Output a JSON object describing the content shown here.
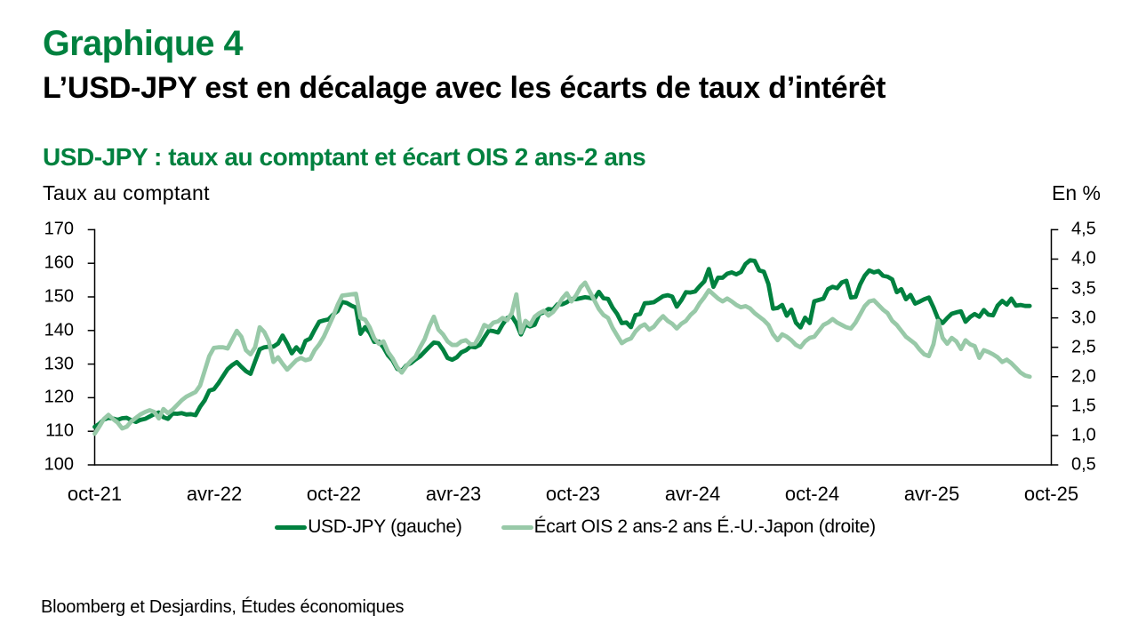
{
  "page": {
    "background": "#FFFFFF"
  },
  "header": {
    "title": "Graphique 4",
    "headline": "L’USD-JPY est en décalage avec les écarts de taux d’intérêt",
    "accent_color": "#00813F"
  },
  "chart": {
    "subtitle": "USD-JPY : taux au comptant et écart OIS 2 ans-2 ans",
    "left_axis_title": "Taux au comptant",
    "right_axis_title": "En %",
    "source": "Bloomberg et Desjardins, Études économiques"
  },
  "legend": {
    "items": [
      {
        "label": "USD-JPY (gauche)",
        "color": "#00813F"
      },
      {
        "label": "Écart OIS 2 ans-2 ans É.-U.-Japon (droite)",
        "color": "#98C9A8"
      }
    ]
  },
  "chart_data": {
    "type": "line",
    "title": "USD-JPY : taux au comptant et écart OIS 2 ans-2 ans",
    "x_tick_labels": [
      "oct-21",
      "avr-22",
      "oct-22",
      "avr-23",
      "oct-23",
      "avr-24",
      "oct-24",
      "avr-25",
      "oct-25"
    ],
    "left_axis": {
      "title": "Taux au comptant",
      "min": 100,
      "max": 170,
      "step": 10,
      "tick_labels": [
        "170",
        "160",
        "150",
        "140",
        "130",
        "120",
        "110",
        "100"
      ]
    },
    "right_axis": {
      "title": "En %",
      "min": 0.5,
      "max": 4.5,
      "step": 0.5,
      "tick_labels": [
        "4,5",
        "4,0",
        "3,5",
        "3,0",
        "2,5",
        "2,0",
        "1,5",
        "1,0",
        "0,5"
      ]
    },
    "frequency": "weekly",
    "x_span_fraction": 0.9774,
    "grid": false,
    "legend_position": "bottom",
    "series": [
      {
        "name": "USD-JPY (gauche)",
        "axis": "left",
        "color": "#00813F",
        "stroke_width": 4.8,
        "values": [
          111.3,
          112.2,
          113.5,
          114.0,
          113.8,
          113.4,
          113.9,
          114.0,
          113.3,
          112.8,
          113.4,
          113.7,
          114.4,
          115.1,
          115.6,
          114.2,
          113.7,
          115.3,
          115.2,
          115.4,
          115.0,
          115.1,
          114.8,
          117.3,
          119.2,
          122.1,
          122.5,
          124.3,
          126.4,
          128.5,
          129.7,
          130.6,
          129.2,
          127.9,
          127.1,
          130.8,
          134.4,
          135.0,
          135.2,
          135.2,
          136.1,
          138.5,
          136.1,
          133.2,
          135.0,
          133.5,
          136.9,
          137.6,
          140.2,
          142.6,
          143.0,
          143.3,
          144.7,
          145.8,
          148.5,
          148.2,
          147.4,
          146.8,
          139.0,
          141.0,
          139.3,
          136.6,
          136.7,
          135.0,
          132.6,
          131.1,
          128.6,
          128.0,
          129.6,
          130.3,
          131.4,
          132.3,
          133.7,
          135.1,
          136.4,
          136.2,
          134.3,
          131.8,
          131.3,
          132.0,
          133.5,
          134.1,
          135.2,
          135.0,
          135.7,
          137.9,
          140.0,
          139.8,
          139.4,
          141.8,
          143.7,
          144.3,
          142.1,
          138.8,
          141.8,
          141.2,
          141.7,
          144.9,
          145.4,
          146.4,
          146.2,
          147.8,
          147.8,
          148.4,
          149.4,
          149.3,
          149.6,
          149.9,
          149.7,
          149.4,
          151.5,
          149.6,
          149.4,
          146.8,
          144.9,
          142.2,
          142.4,
          141.0,
          144.6,
          144.9,
          148.1,
          148.2,
          148.4,
          149.3,
          150.2,
          150.5,
          150.1,
          147.1,
          149.0,
          151.4,
          151.3,
          151.6,
          153.2,
          154.6,
          158.3,
          153.0,
          155.7,
          155.7,
          156.9,
          157.3,
          156.7,
          157.4,
          159.8,
          160.9,
          160.7,
          157.9,
          157.5,
          153.8,
          146.5,
          146.7,
          147.6,
          144.4,
          146.2,
          142.3,
          140.9,
          143.8,
          142.2,
          148.7,
          149.1,
          149.5,
          152.3,
          153.0,
          152.6,
          154.3,
          154.8,
          149.8,
          150.0,
          153.7,
          156.3,
          157.9,
          157.3,
          157.7,
          156.3,
          156.0,
          155.2,
          151.4,
          152.3,
          149.3,
          150.6,
          148.0,
          148.6,
          149.3,
          149.8,
          146.9,
          143.5,
          142.2,
          143.7,
          145.0,
          145.4,
          145.7,
          142.6,
          144.0,
          144.9,
          144.1,
          146.1,
          144.7,
          144.5,
          147.4,
          148.8,
          147.7,
          149.5,
          147.4,
          147.6,
          147.3,
          147.3
        ]
      },
      {
        "name": "Écart OIS 2 ans-2 ans É.-U.-Japon (droite)",
        "axis": "right",
        "color": "#98C9A8",
        "stroke_width": 4.8,
        "values": [
          1.03,
          1.15,
          1.28,
          1.35,
          1.28,
          1.22,
          1.12,
          1.15,
          1.24,
          1.3,
          1.36,
          1.4,
          1.43,
          1.4,
          1.29,
          1.45,
          1.38,
          1.44,
          1.52,
          1.6,
          1.66,
          1.7,
          1.74,
          1.85,
          2.1,
          2.35,
          2.49,
          2.5,
          2.5,
          2.48,
          2.63,
          2.78,
          2.68,
          2.45,
          2.38,
          2.5,
          2.84,
          2.76,
          2.6,
          2.25,
          2.33,
          2.22,
          2.12,
          2.2,
          2.28,
          2.32,
          2.28,
          2.3,
          2.45,
          2.55,
          2.68,
          2.85,
          3.02,
          3.22,
          3.38,
          3.39,
          3.4,
          3.41,
          3.0,
          2.97,
          2.84,
          2.65,
          2.56,
          2.6,
          2.42,
          2.31,
          2.16,
          2.07,
          2.18,
          2.27,
          2.34,
          2.5,
          2.64,
          2.85,
          3.02,
          2.8,
          2.72,
          2.6,
          2.54,
          2.54,
          2.6,
          2.62,
          2.55,
          2.56,
          2.7,
          2.88,
          2.84,
          2.92,
          2.94,
          3.0,
          2.96,
          3.08,
          3.4,
          2.75,
          2.95,
          2.88,
          3.02,
          3.08,
          3.12,
          3.04,
          3.1,
          3.2,
          3.33,
          3.42,
          3.28,
          3.38,
          3.52,
          3.6,
          3.45,
          3.3,
          3.15,
          3.05,
          3.0,
          2.83,
          2.7,
          2.57,
          2.62,
          2.65,
          2.77,
          2.85,
          2.89,
          2.8,
          2.85,
          2.95,
          3.03,
          2.95,
          2.9,
          2.82,
          2.9,
          2.95,
          3.05,
          3.12,
          3.25,
          3.35,
          3.47,
          3.4,
          3.33,
          3.28,
          3.33,
          3.28,
          3.22,
          3.18,
          3.2,
          3.16,
          3.08,
          3.02,
          2.96,
          2.88,
          2.72,
          2.62,
          2.72,
          2.68,
          2.62,
          2.54,
          2.5,
          2.6,
          2.66,
          2.68,
          2.78,
          2.88,
          2.92,
          2.98,
          2.92,
          2.88,
          2.84,
          2.82,
          2.92,
          3.06,
          3.2,
          3.28,
          3.3,
          3.22,
          3.14,
          3.08,
          2.95,
          2.88,
          2.78,
          2.68,
          2.62,
          2.56,
          2.46,
          2.38,
          2.35,
          2.55,
          2.95,
          2.66,
          2.56,
          2.66,
          2.6,
          2.47,
          2.62,
          2.55,
          2.52,
          2.32,
          2.45,
          2.42,
          2.38,
          2.33,
          2.25,
          2.29,
          2.23,
          2.15,
          2.07,
          2.02,
          2.0
        ]
      }
    ]
  }
}
